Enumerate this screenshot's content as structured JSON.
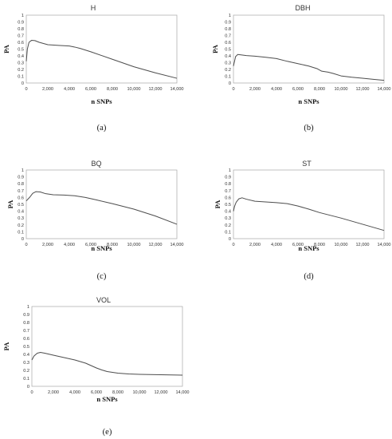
{
  "chart_data": [
    {
      "type": "line",
      "title": "H",
      "xlabel": "n SNPs",
      "ylabel": "PA",
      "caption": "(a)",
      "xlim": [
        0,
        14000
      ],
      "ylim": [
        0,
        1
      ],
      "xticks": [
        {
          "v": 0,
          "label": "0"
        },
        {
          "v": 2000,
          "label": "2,000"
        },
        {
          "v": 4000,
          "label": "4,000"
        },
        {
          "v": 6000,
          "label": "6,000"
        },
        {
          "v": 8000,
          "label": "8,000"
        },
        {
          "v": 10000,
          "label": "10,000"
        },
        {
          "v": 12000,
          "label": "12,000"
        },
        {
          "v": 14000,
          "label": "14,000"
        }
      ],
      "yticks": [
        {
          "v": 0,
          "label": "0"
        },
        {
          "v": 0.1,
          "label": "0.1"
        },
        {
          "v": 0.2,
          "label": "0.2"
        },
        {
          "v": 0.3,
          "label": "0.3"
        },
        {
          "v": 0.4,
          "label": "0.4"
        },
        {
          "v": 0.5,
          "label": "0.5"
        },
        {
          "v": 0.6,
          "label": "0.6"
        },
        {
          "v": 0.7,
          "label": "0.7"
        },
        {
          "v": 0.8,
          "label": "0.8"
        },
        {
          "v": 0.9,
          "label": "0.9"
        },
        {
          "v": 1,
          "label": "1"
        }
      ],
      "grid": false,
      "series": [
        {
          "x": [
            0,
            100,
            250,
            500,
            800,
            1200,
            2000,
            3000,
            4000,
            4500,
            5000,
            6000,
            8000,
            10000,
            12000,
            14000
          ],
          "y": [
            0.32,
            0.5,
            0.6,
            0.63,
            0.625,
            0.6,
            0.565,
            0.555,
            0.545,
            0.53,
            0.51,
            0.46,
            0.35,
            0.24,
            0.15,
            0.07
          ]
        }
      ]
    },
    {
      "type": "line",
      "title": "DBH",
      "xlabel": "n SNPs",
      "ylabel": "PA",
      "caption": "(b)",
      "xlim": [
        0,
        14000
      ],
      "ylim": [
        0,
        1
      ],
      "xticks": [
        {
          "v": 0,
          "label": "0"
        },
        {
          "v": 2000,
          "label": "2,000"
        },
        {
          "v": 4000,
          "label": "4,000"
        },
        {
          "v": 6000,
          "label": "6,000"
        },
        {
          "v": 8000,
          "label": "8,000"
        },
        {
          "v": 10000,
          "label": "10,000"
        },
        {
          "v": 12000,
          "label": "12,000"
        },
        {
          "v": 14000,
          "label": "14,000"
        }
      ],
      "yticks": [
        {
          "v": 0,
          "label": "0"
        },
        {
          "v": 0.1,
          "label": "0.1"
        },
        {
          "v": 0.2,
          "label": "0.2"
        },
        {
          "v": 0.3,
          "label": "0.3"
        },
        {
          "v": 0.4,
          "label": "0.4"
        },
        {
          "v": 0.5,
          "label": "0.5"
        },
        {
          "v": 0.6,
          "label": "0.6"
        },
        {
          "v": 0.7,
          "label": "0.7"
        },
        {
          "v": 0.8,
          "label": "0.8"
        },
        {
          "v": 0.9,
          "label": "0.9"
        },
        {
          "v": 1,
          "label": "1"
        }
      ],
      "grid": false,
      "series": [
        {
          "x": [
            0,
            100,
            200,
            400,
            700,
            1200,
            2000,
            3000,
            4000,
            5000,
            6000,
            7000,
            7800,
            8200,
            8800,
            9300,
            10000,
            11000,
            12000,
            13000,
            14000
          ],
          "y": [
            0.25,
            0.32,
            0.39,
            0.42,
            0.415,
            0.405,
            0.395,
            0.38,
            0.36,
            0.32,
            0.285,
            0.25,
            0.21,
            0.175,
            0.16,
            0.14,
            0.105,
            0.085,
            0.07,
            0.055,
            0.04
          ]
        }
      ]
    },
    {
      "type": "line",
      "title": "BQ",
      "xlabel": "n SNPs",
      "ylabel": "PA",
      "caption": "(c)",
      "xlim": [
        0,
        14000
      ],
      "ylim": [
        0,
        1
      ],
      "xticks": [
        {
          "v": 0,
          "label": "0"
        },
        {
          "v": 2000,
          "label": "2,000"
        },
        {
          "v": 4000,
          "label": "4,000"
        },
        {
          "v": 6000,
          "label": "6,000"
        },
        {
          "v": 8000,
          "label": "8,000"
        },
        {
          "v": 10000,
          "label": "10,000"
        },
        {
          "v": 12000,
          "label": "12,000"
        },
        {
          "v": 14000,
          "label": "14,000"
        }
      ],
      "yticks": [
        {
          "v": 0,
          "label": "0"
        },
        {
          "v": 0.1,
          "label": "0.1"
        },
        {
          "v": 0.2,
          "label": "0.2"
        },
        {
          "v": 0.3,
          "label": "0.3"
        },
        {
          "v": 0.4,
          "label": "0.4"
        },
        {
          "v": 0.5,
          "label": "0.5"
        },
        {
          "v": 0.6,
          "label": "0.6"
        },
        {
          "v": 0.7,
          "label": "0.7"
        },
        {
          "v": 0.8,
          "label": "0.8"
        },
        {
          "v": 0.9,
          "label": "0.9"
        },
        {
          "v": 1,
          "label": "1"
        }
      ],
      "grid": false,
      "series": [
        {
          "x": [
            0,
            300,
            600,
            900,
            1300,
            1800,
            2500,
            3500,
            4500,
            5500,
            6500,
            8000,
            10000,
            12000,
            14000
          ],
          "y": [
            0.55,
            0.6,
            0.66,
            0.685,
            0.68,
            0.655,
            0.64,
            0.635,
            0.625,
            0.6,
            0.565,
            0.51,
            0.43,
            0.33,
            0.21
          ]
        }
      ]
    },
    {
      "type": "line",
      "title": "ST",
      "xlabel": "n SNPs",
      "ylabel": "PA",
      "caption": "(d)",
      "xlim": [
        0,
        14000
      ],
      "ylim": [
        0,
        1
      ],
      "xticks": [
        {
          "v": 0,
          "label": "0"
        },
        {
          "v": 2000,
          "label": "2,000"
        },
        {
          "v": 4000,
          "label": "4,000"
        },
        {
          "v": 6000,
          "label": "6,000"
        },
        {
          "v": 8000,
          "label": "8,000"
        },
        {
          "v": 10000,
          "label": "10,000"
        },
        {
          "v": 12000,
          "label": "12,000"
        },
        {
          "v": 14000,
          "label": "14,000"
        }
      ],
      "yticks": [
        {
          "v": 0,
          "label": "0"
        },
        {
          "v": 0.1,
          "label": "0.1"
        },
        {
          "v": 0.2,
          "label": "0.2"
        },
        {
          "v": 0.3,
          "label": "0.3"
        },
        {
          "v": 0.4,
          "label": "0.4"
        },
        {
          "v": 0.5,
          "label": "0.5"
        },
        {
          "v": 0.6,
          "label": "0.6"
        },
        {
          "v": 0.7,
          "label": "0.7"
        },
        {
          "v": 0.8,
          "label": "0.8"
        },
        {
          "v": 0.9,
          "label": "0.9"
        },
        {
          "v": 1,
          "label": "1"
        }
      ],
      "grid": false,
      "series": [
        {
          "x": [
            0,
            100,
            250,
            500,
            800,
            1200,
            2000,
            3000,
            4000,
            5000,
            6000,
            7000,
            8000,
            10000,
            12000,
            14000
          ],
          "y": [
            0.4,
            0.47,
            0.53,
            0.58,
            0.595,
            0.575,
            0.545,
            0.535,
            0.525,
            0.51,
            0.475,
            0.43,
            0.38,
            0.3,
            0.21,
            0.12
          ]
        }
      ]
    },
    {
      "type": "line",
      "title": "VOL",
      "xlabel": "n SNPs",
      "ylabel": "PA",
      "caption": "(e)",
      "xlim": [
        0,
        14000
      ],
      "ylim": [
        0,
        1
      ],
      "xticks": [
        {
          "v": 0,
          "label": "0"
        },
        {
          "v": 2000,
          "label": "2,000"
        },
        {
          "v": 4000,
          "label": "4,000"
        },
        {
          "v": 6000,
          "label": "6,000"
        },
        {
          "v": 8000,
          "label": "8,000"
        },
        {
          "v": 10000,
          "label": "10,000"
        },
        {
          "v": 12000,
          "label": "12,000"
        },
        {
          "v": 14000,
          "label": "14,000"
        }
      ],
      "yticks": [
        {
          "v": 0,
          "label": "0"
        },
        {
          "v": 0.1,
          "label": "0.1"
        },
        {
          "v": 0.2,
          "label": "0.2"
        },
        {
          "v": 0.3,
          "label": "0.3"
        },
        {
          "v": 0.4,
          "label": "0.4"
        },
        {
          "v": 0.5,
          "label": "0.5"
        },
        {
          "v": 0.6,
          "label": "0.6"
        },
        {
          "v": 0.7,
          "label": "0.7"
        },
        {
          "v": 0.8,
          "label": "0.8"
        },
        {
          "v": 0.9,
          "label": "0.9"
        },
        {
          "v": 1,
          "label": "1"
        }
      ],
      "grid": false,
      "series": [
        {
          "x": [
            0,
            200,
            500,
            800,
            1200,
            2000,
            3000,
            4000,
            5000,
            5500,
            6000,
            6500,
            7000,
            8000,
            9000,
            10000,
            12000,
            14000
          ],
          "y": [
            0.33,
            0.38,
            0.415,
            0.425,
            0.415,
            0.39,
            0.36,
            0.33,
            0.29,
            0.26,
            0.23,
            0.205,
            0.185,
            0.165,
            0.155,
            0.15,
            0.145,
            0.14
          ]
        }
      ]
    }
  ]
}
